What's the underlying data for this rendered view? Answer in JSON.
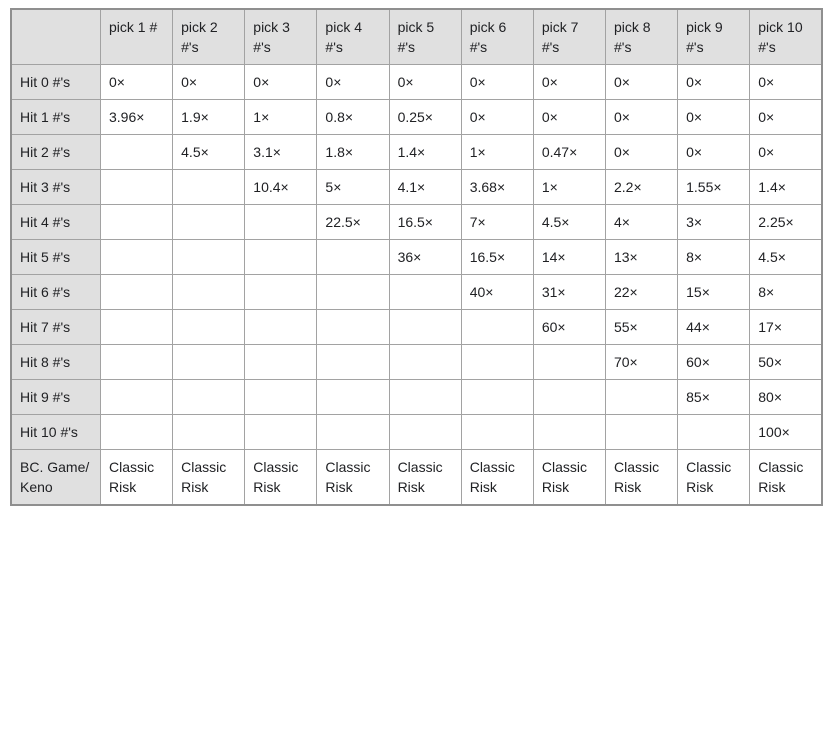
{
  "table": {
    "corner_label": "",
    "columns": [
      "pick 1 #",
      "pick 2 #'s",
      "pick 3 #'s",
      "pick 4 #'s",
      "pick 5 #'s",
      "pick 6 #'s",
      "pick 7 #'s",
      "pick 8 #'s",
      "pick 9 #'s",
      "pick 10 #'s"
    ],
    "rows": [
      {
        "label": "Hit 0 #'s",
        "cells": [
          "0×",
          "0×",
          "0×",
          "0×",
          "0×",
          "0×",
          "0×",
          "0×",
          "0×",
          "0×"
        ]
      },
      {
        "label": "Hit 1 #'s",
        "cells": [
          "3.96×",
          "1.9×",
          "1×",
          "0.8×",
          "0.25×",
          "0×",
          "0×",
          "0×",
          "0×",
          "0×"
        ]
      },
      {
        "label": "Hit 2 #'s",
        "cells": [
          "",
          "4.5×",
          "3.1×",
          "1.8×",
          "1.4×",
          "1×",
          "0.47×",
          "0×",
          "0×",
          "0×"
        ]
      },
      {
        "label": "Hit 3 #'s",
        "cells": [
          "",
          "",
          "10.4×",
          "5×",
          "4.1×",
          "3.68×",
          "1×",
          "2.2×",
          "1.55×",
          "1.4×"
        ]
      },
      {
        "label": "Hit 4 #'s",
        "cells": [
          "",
          "",
          "",
          "22.5×",
          "16.5×",
          "7×",
          "4.5×",
          "4×",
          "3×",
          "2.25×"
        ]
      },
      {
        "label": "Hit 5 #'s",
        "cells": [
          "",
          "",
          "",
          "",
          "36×",
          "16.5×",
          "14×",
          "13×",
          "8×",
          "4.5×"
        ]
      },
      {
        "label": "Hit 6 #'s",
        "cells": [
          "",
          "",
          "",
          "",
          "",
          "40×",
          "31×",
          "22×",
          "15×",
          "8×"
        ]
      },
      {
        "label": "Hit 7 #'s",
        "cells": [
          "",
          "",
          "",
          "",
          "",
          "",
          "60×",
          "55×",
          "44×",
          "17×"
        ]
      },
      {
        "label": "Hit 8 #'s",
        "cells": [
          "",
          "",
          "",
          "",
          "",
          "",
          "",
          "70×",
          "60×",
          "50×"
        ]
      },
      {
        "label": "Hit 9 #'s",
        "cells": [
          "",
          "",
          "",
          "",
          "",
          "",
          "",
          "",
          "85×",
          "80×"
        ]
      },
      {
        "label": "Hit 10 #'s",
        "cells": [
          "",
          "",
          "",
          "",
          "",
          "",
          "",
          "",
          "",
          "100×"
        ]
      },
      {
        "label": "BC. Game/ Keno",
        "cells": [
          "Classic Risk",
          "Classic Risk",
          "Classic Risk",
          "Classic Risk",
          "Classic Risk",
          "Classic Risk",
          "Classic Risk",
          "Classic Risk",
          "Classic Risk",
          "Classic Risk"
        ]
      }
    ],
    "colors": {
      "header_bg": "#e0e0e0",
      "border": "#a2a2a2",
      "outer_border": "#8f8f8f",
      "text": "#202124",
      "page_bg": "#ffffff"
    }
  }
}
